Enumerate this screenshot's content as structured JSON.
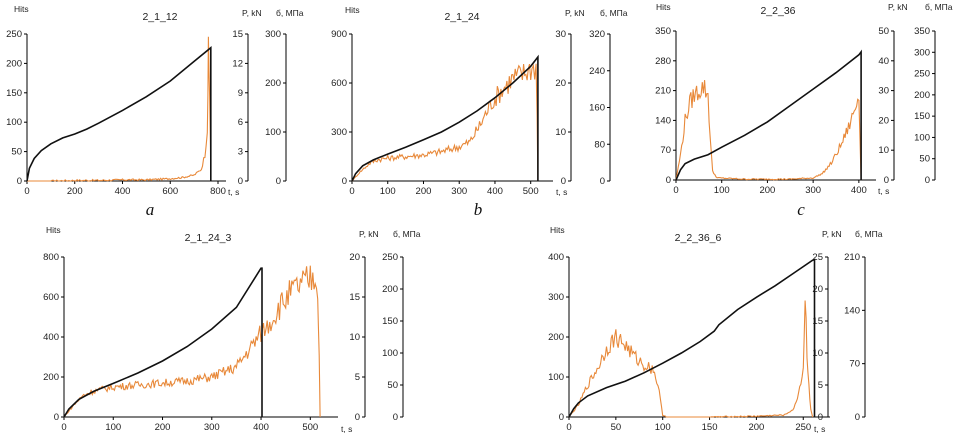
{
  "chart_data": [
    {
      "type": "line",
      "title": "2_1_12",
      "panel_label": "a",
      "xlabel": "t, s",
      "ylabel_left": "Hits",
      "ylabel_right1": "P, kN",
      "ylabel_right2": "б, МПа",
      "xlim": [
        0,
        800
      ],
      "xticks": [
        0,
        200,
        400,
        600,
        800
      ],
      "ylim_left": [
        0,
        250
      ],
      "yticks_left": [
        0,
        50,
        100,
        150,
        200,
        250
      ],
      "ylim_right1": [
        0,
        15
      ],
      "yticks_right1": [
        0,
        3,
        6,
        9,
        12,
        15
      ],
      "ylim_right2": [
        0,
        300
      ],
      "yticks_right2": [
        0,
        100,
        200,
        300
      ],
      "series": [
        {
          "name": "",
          "axis": "left",
          "color": "#e8893a",
          "x": [
            0,
            100,
            200,
            300,
            400,
            500,
            600,
            650,
            700,
            730,
            745,
            755,
            760,
            765,
            768,
            770
          ],
          "y": [
            0,
            0,
            1,
            1,
            2,
            2,
            4,
            6,
            10,
            20,
            45,
            90,
            220,
            150,
            60,
            0
          ]
        },
        {
          "name": "",
          "axis": "right1",
          "color": "#111111",
          "x": [
            0,
            10,
            30,
            60,
            100,
            150,
            200,
            250,
            300,
            400,
            500,
            600,
            700,
            770,
            770
          ],
          "y": [
            0,
            1.3,
            2.3,
            3.1,
            3.8,
            4.4,
            4.8,
            5.3,
            5.9,
            7.2,
            8.6,
            10.2,
            12.2,
            13.6,
            0
          ]
        }
      ]
    },
    {
      "type": "line",
      "title": "2_1_24",
      "panel_label": "b",
      "xlabel": "t, s",
      "ylabel_left": "Hits",
      "ylabel_right1": "P, kN",
      "ylabel_right2": "б, МПа",
      "xlim": [
        0,
        540
      ],
      "xticks": [
        0,
        100,
        200,
        300,
        400,
        500
      ],
      "ylim_left": [
        0,
        900
      ],
      "yticks_left": [
        0,
        300,
        600,
        900
      ],
      "ylim_right1": [
        0,
        30
      ],
      "yticks_right1": [
        0,
        10,
        20,
        30
      ],
      "ylim_right2": [
        0,
        320
      ],
      "yticks_right2": [
        0,
        80,
        160,
        240,
        320
      ],
      "series": [
        {
          "name": "",
          "axis": "left",
          "color": "#e8893a",
          "x": [
            0,
            20,
            50,
            70,
            100,
            150,
            200,
            250,
            300,
            330,
            360,
            390,
            420,
            450,
            480,
            500,
            515,
            518,
            520
          ],
          "y": [
            0,
            50,
            110,
            130,
            140,
            150,
            160,
            180,
            210,
            240,
            350,
            480,
            560,
            630,
            660,
            690,
            700,
            400,
            0
          ]
        },
        {
          "name": "",
          "axis": "right1",
          "color": "#111111",
          "x": [
            0,
            10,
            30,
            60,
            100,
            150,
            200,
            250,
            300,
            350,
            400,
            450,
            500,
            520,
            520
          ],
          "y": [
            0,
            1.5,
            3.1,
            4.3,
            5.5,
            6.9,
            8.4,
            10.0,
            12.0,
            14.3,
            17.0,
            20.0,
            23.4,
            25.3,
            0
          ]
        }
      ]
    },
    {
      "type": "line",
      "title": "2_2_36",
      "panel_label": "c",
      "xlabel": "t, s",
      "ylabel_left": "Hits",
      "ylabel_right1": "P, kN",
      "ylabel_right2": "б, МПа",
      "xlim": [
        0,
        420
      ],
      "xticks": [
        0,
        100,
        200,
        300,
        400
      ],
      "ylim_left": [
        0,
        350
      ],
      "yticks_left": [
        0,
        70,
        140,
        210,
        280,
        350
      ],
      "ylim_right1": [
        0,
        50
      ],
      "yticks_right1": [
        0,
        10,
        20,
        30,
        40,
        50
      ],
      "ylim_right2": [
        0,
        350
      ],
      "yticks_right2": [
        0,
        50,
        100,
        150,
        200,
        250,
        300,
        350
      ],
      "series": [
        {
          "name": "",
          "axis": "left",
          "color": "#e8893a",
          "x": [
            0,
            10,
            20,
            30,
            40,
            50,
            60,
            70,
            75,
            80,
            90,
            150,
            250,
            300,
            320,
            340,
            360,
            380,
            395,
            400,
            405
          ],
          "y": [
            0,
            60,
            140,
            180,
            200,
            210,
            220,
            200,
            100,
            20,
            5,
            2,
            2,
            5,
            15,
            40,
            80,
            130,
            180,
            210,
            0
          ]
        },
        {
          "name": "",
          "axis": "right1",
          "color": "#111111",
          "x": [
            0,
            10,
            20,
            40,
            70,
            100,
            150,
            200,
            250,
            300,
            350,
            400,
            405,
            405
          ],
          "y": [
            0,
            3.5,
            5.5,
            7.0,
            8.5,
            11.0,
            15.0,
            19.5,
            25.0,
            30.5,
            36.0,
            42.0,
            43.0,
            0
          ]
        }
      ]
    },
    {
      "type": "line",
      "title": "2_1_24_3",
      "panel_label": "",
      "xlabel": "t, s",
      "ylabel_left": "Hits",
      "ylabel_right1": "P, kN",
      "ylabel_right2": "б, МПа",
      "xlim": [
        0,
        540
      ],
      "xticks": [
        0,
        100,
        200,
        300,
        400,
        500
      ],
      "ylim_left": [
        0,
        800
      ],
      "yticks_left": [
        0,
        200,
        400,
        600,
        800
      ],
      "ylim_right1": [
        0,
        20
      ],
      "yticks_right1": [
        0,
        5,
        10,
        15,
        20
      ],
      "ylim_right2": [
        0,
        250
      ],
      "yticks_right2": [
        0,
        50,
        100,
        150,
        200,
        250
      ],
      "series": [
        {
          "name": "",
          "axis": "left",
          "color": "#e8893a",
          "x": [
            0,
            20,
            40,
            60,
            80,
            100,
            150,
            200,
            250,
            300,
            350,
            380,
            400,
            420,
            440,
            460,
            480,
            500,
            510,
            515,
            518,
            520
          ],
          "y": [
            0,
            60,
            110,
            130,
            140,
            150,
            160,
            170,
            180,
            200,
            250,
            350,
            420,
            480,
            560,
            620,
            660,
            690,
            700,
            650,
            300,
            0
          ]
        },
        {
          "name": "",
          "axis": "right1",
          "color": "#111111",
          "x": [
            0,
            10,
            30,
            60,
            100,
            150,
            200,
            250,
            300,
            350,
            400,
            402,
            402
          ],
          "y": [
            0,
            1.0,
            2.2,
            3.2,
            4.2,
            5.5,
            7.0,
            8.8,
            11.0,
            13.7,
            18.6,
            18.6,
            0
          ]
        }
      ]
    },
    {
      "type": "line",
      "title": "2_2_36_6",
      "panel_label": "",
      "xlabel": "t, s",
      "ylabel_left": "Hits",
      "ylabel_right1": "P, kN",
      "ylabel_right2": "б, МПа",
      "xlim": [
        0,
        270
      ],
      "xticks": [
        0,
        50,
        100,
        150,
        200,
        250
      ],
      "ylim_left": [
        0,
        400
      ],
      "yticks_left": [
        0,
        100,
        200,
        300,
        400
      ],
      "ylim_right1": [
        0,
        25
      ],
      "yticks_right1": [
        0,
        5,
        10,
        15,
        20,
        25
      ],
      "ylim_right2": [
        0,
        210
      ],
      "yticks_right2": [
        0,
        70,
        140,
        210
      ],
      "series": [
        {
          "name": "",
          "axis": "left",
          "color": "#e8893a",
          "x": [
            0,
            10,
            20,
            30,
            40,
            50,
            60,
            70,
            80,
            90,
            95,
            100,
            105,
            150,
            200,
            230,
            240,
            245,
            250,
            252,
            254,
            256,
            258,
            260
          ],
          "y": [
            0,
            30,
            80,
            120,
            170,
            200,
            180,
            150,
            130,
            120,
            80,
            5,
            0,
            0,
            2,
            5,
            20,
            60,
            120,
            300,
            160,
            80,
            20,
            0
          ]
        },
        {
          "name": "",
          "axis": "right1",
          "color": "#111111",
          "x": [
            0,
            5,
            10,
            20,
            40,
            60,
            80,
            100,
            120,
            140,
            155,
            160,
            180,
            200,
            220,
            240,
            260,
            262,
            262
          ],
          "y": [
            0,
            1.3,
            2.2,
            3.3,
            4.6,
            5.6,
            6.9,
            8.4,
            10.0,
            11.8,
            13.4,
            14.4,
            16.8,
            18.7,
            20.5,
            22.5,
            24.5,
            24.6,
            0
          ]
        }
      ]
    }
  ]
}
